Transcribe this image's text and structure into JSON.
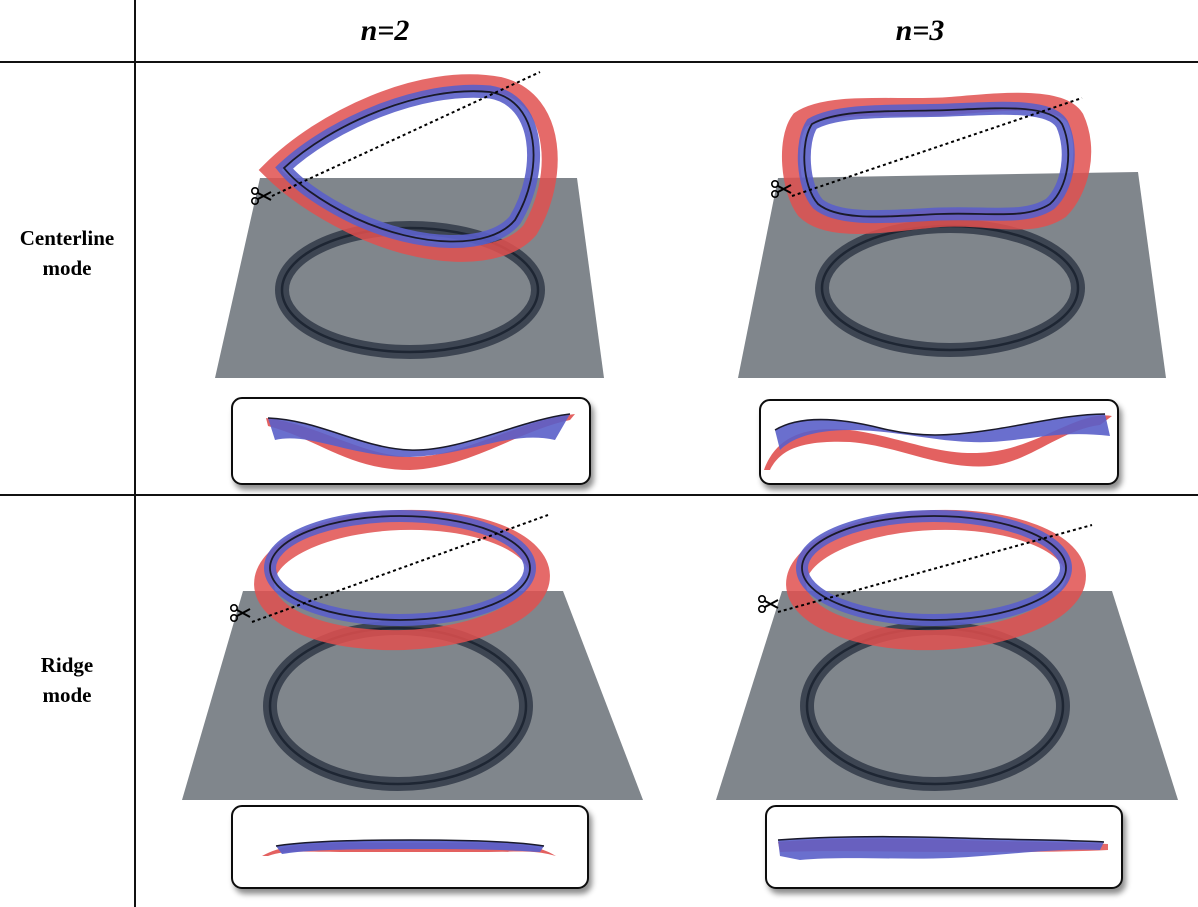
{
  "header": {
    "col1": "n=2",
    "col2": "n=3"
  },
  "rows": [
    {
      "line1": "Centerline",
      "line2": "mode"
    },
    {
      "line1": "Ridge",
      "line2": "mode"
    }
  ],
  "colors": {
    "plane": "#80868c",
    "ring_shadow": "#3d4552",
    "ring_dark": "#1e2633",
    "red_strip": "#e0504f",
    "blue_strip": "#5a5fc9",
    "outline": "#1a1a2a"
  },
  "icons": {
    "cut_marker": "scissors-icon"
  }
}
